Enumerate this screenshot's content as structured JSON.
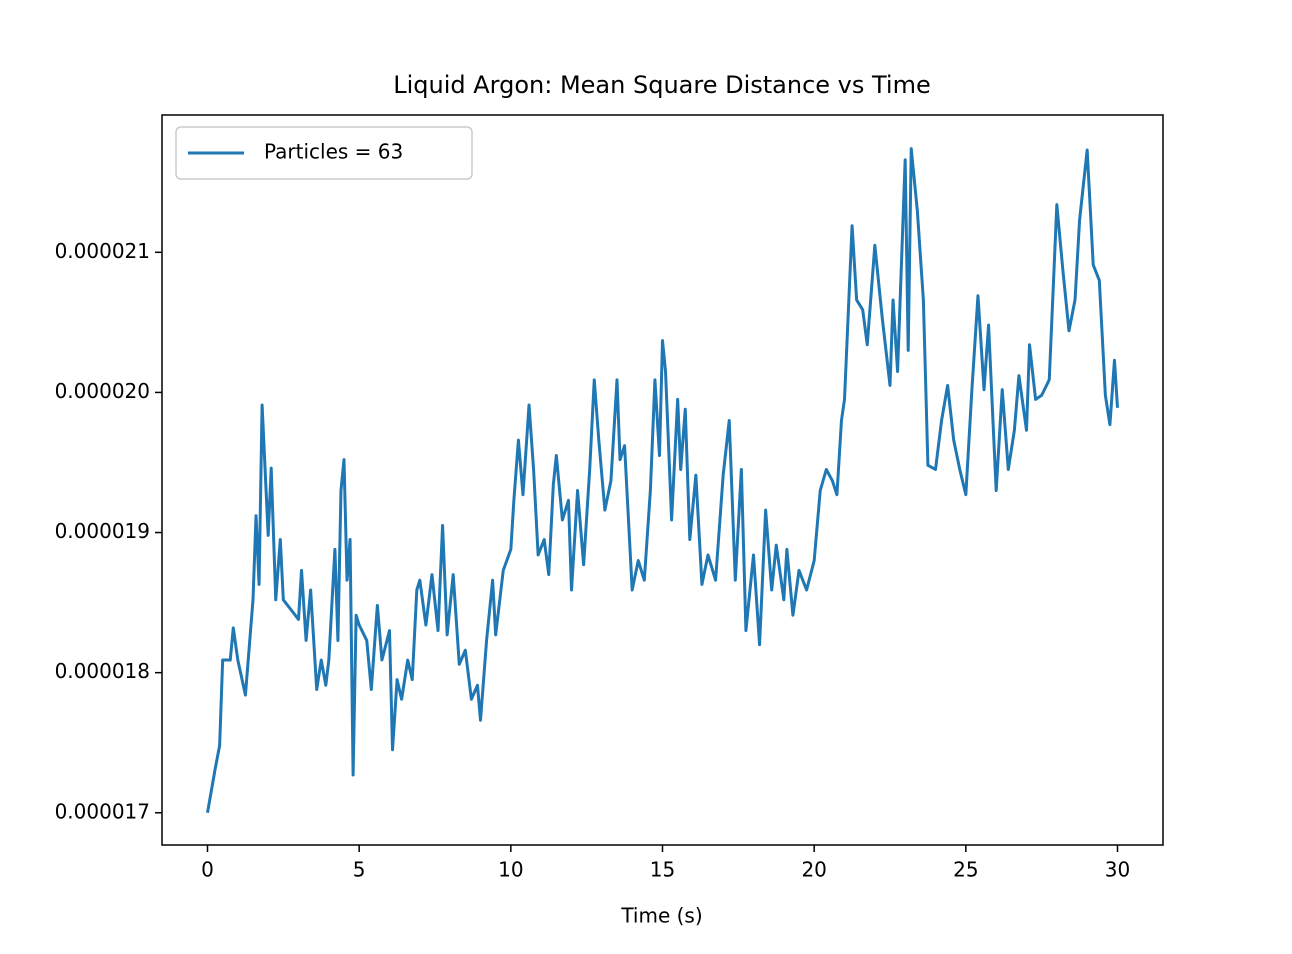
{
  "chart_data": {
    "type": "line",
    "title": "Liquid Argon: Mean Square Distance vs Time",
    "x_label": "Time (s)",
    "x": [
      0,
      0.25,
      0.4,
      0.5,
      0.75,
      0.85,
      1.0,
      1.25,
      1.5,
      1.6,
      1.7,
      1.8,
      2.0,
      2.1,
      2.25,
      2.4,
      2.5,
      2.75,
      3.0,
      3.1,
      3.25,
      3.4,
      3.6,
      3.75,
      3.9,
      4.0,
      4.2,
      4.3,
      4.4,
      4.5,
      4.6,
      4.7,
      4.8,
      4.9,
      5.0,
      5.25,
      5.4,
      5.6,
      5.75,
      6.0,
      6.1,
      6.25,
      6.4,
      6.6,
      6.75,
      6.9,
      7.0,
      7.2,
      7.4,
      7.6,
      7.75,
      7.9,
      8.1,
      8.3,
      8.5,
      8.7,
      8.9,
      9.0,
      9.2,
      9.4,
      9.5,
      9.75,
      10.0,
      10.1,
      10.25,
      10.4,
      10.6,
      10.75,
      10.9,
      11.1,
      11.25,
      11.4,
      11.5,
      11.7,
      11.9,
      12.0,
      12.2,
      12.4,
      12.6,
      12.75,
      12.9,
      13.1,
      13.3,
      13.5,
      13.6,
      13.75,
      14.0,
      14.2,
      14.4,
      14.6,
      14.75,
      14.9,
      15.0,
      15.1,
      15.3,
      15.5,
      15.6,
      15.75,
      15.9,
      16.1,
      16.3,
      16.5,
      16.75,
      17.0,
      17.2,
      17.4,
      17.6,
      17.75,
      18.0,
      18.2,
      18.4,
      18.6,
      18.75,
      19.0,
      19.1,
      19.3,
      19.5,
      19.75,
      20.0,
      20.2,
      20.4,
      20.6,
      20.75,
      20.9,
      21.0,
      21.25,
      21.4,
      21.6,
      21.75,
      22.0,
      22.25,
      22.5,
      22.6,
      22.75,
      23.0,
      23.1,
      23.2,
      23.4,
      23.6,
      23.75,
      24.0,
      24.2,
      24.4,
      24.6,
      24.8,
      25.0,
      25.2,
      25.4,
      25.6,
      25.75,
      26.0,
      26.2,
      26.4,
      26.6,
      26.75,
      27.0,
      27.1,
      27.3,
      27.5,
      27.75,
      28.0,
      28.2,
      28.4,
      28.6,
      28.75,
      29.0,
      29.2,
      29.4,
      29.6,
      29.75,
      29.9,
      30.0
    ],
    "series": [
      {
        "name": "Particles = 63",
        "color": "#1f77b4",
        "values": [
          1.7e-05,
          1.731e-05,
          1.748e-05,
          1.809e-05,
          1.809e-05,
          1.832e-05,
          1.809e-05,
          1.784e-05,
          1.852e-05,
          1.912e-05,
          1.863e-05,
          1.991e-05,
          1.898e-05,
          1.946e-05,
          1.852e-05,
          1.895e-05,
          1.852e-05,
          1.845e-05,
          1.838e-05,
          1.873e-05,
          1.823e-05,
          1.859e-05,
          1.788e-05,
          1.809e-05,
          1.791e-05,
          1.809e-05,
          1.888e-05,
          1.823e-05,
          1.93e-05,
          1.952e-05,
          1.866e-05,
          1.895e-05,
          1.727e-05,
          1.841e-05,
          1.834e-05,
          1.823e-05,
          1.788e-05,
          1.848e-05,
          1.809e-05,
          1.83e-05,
          1.745e-05,
          1.795e-05,
          1.781e-05,
          1.809e-05,
          1.795e-05,
          1.859e-05,
          1.866e-05,
          1.834e-05,
          1.87e-05,
          1.83e-05,
          1.905e-05,
          1.827e-05,
          1.87e-05,
          1.806e-05,
          1.816e-05,
          1.781e-05,
          1.791e-05,
          1.766e-05,
          1.823e-05,
          1.866e-05,
          1.827e-05,
          1.873e-05,
          1.888e-05,
          1.923e-05,
          1.966e-05,
          1.927e-05,
          1.991e-05,
          1.945e-05,
          1.884e-05,
          1.895e-05,
          1.87e-05,
          1.934e-05,
          1.955e-05,
          1.909e-05,
          1.923e-05,
          1.859e-05,
          1.93e-05,
          1.877e-05,
          1.945e-05,
          2.009e-05,
          1.966e-05,
          1.916e-05,
          1.937e-05,
          2.009e-05,
          1.952e-05,
          1.962e-05,
          1.859e-05,
          1.88e-05,
          1.866e-05,
          1.93e-05,
          2.009e-05,
          1.955e-05,
          2.037e-05,
          2.015e-05,
          1.909e-05,
          1.995e-05,
          1.945e-05,
          1.988e-05,
          1.895e-05,
          1.941e-05,
          1.863e-05,
          1.884e-05,
          1.866e-05,
          1.941e-05,
          1.98e-05,
          1.866e-05,
          1.945e-05,
          1.83e-05,
          1.884e-05,
          1.82e-05,
          1.916e-05,
          1.859e-05,
          1.891e-05,
          1.852e-05,
          1.888e-05,
          1.841e-05,
          1.873e-05,
          1.859e-05,
          1.88e-05,
          1.93e-05,
          1.945e-05,
          1.937e-05,
          1.927e-05,
          1.98e-05,
          1.995e-05,
          2.119e-05,
          2.066e-05,
          2.059e-05,
          2.034e-05,
          2.105e-05,
          2.052e-05,
          2.005e-05,
          2.066e-05,
          2.015e-05,
          2.166e-05,
          2.03e-05,
          2.174e-05,
          2.13e-05,
          2.066e-05,
          1.948e-05,
          1.945e-05,
          1.98e-05,
          2.005e-05,
          1.966e-05,
          1.945e-05,
          1.927e-05,
          2.002e-05,
          2.069e-05,
          2.002e-05,
          2.048e-05,
          1.93e-05,
          2.002e-05,
          1.945e-05,
          1.973e-05,
          2.012e-05,
          1.973e-05,
          2.034e-05,
          1.995e-05,
          1.998e-05,
          2.009e-05,
          2.134e-05,
          2.087e-05,
          2.044e-05,
          2.066e-05,
          2.123e-05,
          2.173e-05,
          2.091e-05,
          2.08e-05,
          1.998e-05,
          1.977e-05,
          2.023e-05,
          1.989e-05
        ]
      }
    ],
    "xlim": [
      -1.5,
      31.5
    ],
    "ylim": [
      1.677e-05,
      2.198e-05
    ],
    "xticks": [
      0,
      5,
      10,
      15,
      20,
      25,
      30
    ],
    "yticks": [
      1.7e-05,
      1.8e-05,
      1.9e-05,
      {
        "value": 2e-05,
        "label": "0.000020"
      },
      2.1e-05
    ],
    "legend": "upper left",
    "grid": false
  }
}
